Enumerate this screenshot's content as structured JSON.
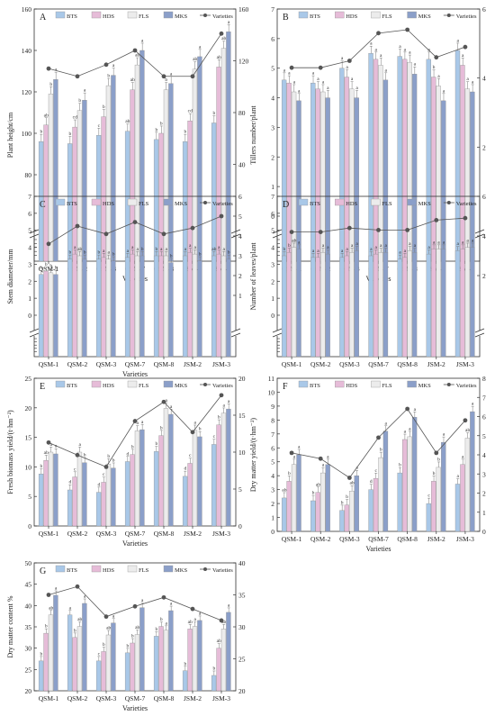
{
  "legend_items": [
    "BTS",
    "HDS",
    "FLS",
    "MKS",
    "Varieties"
  ],
  "series_colors": {
    "BTS": "#a9c8e8",
    "HDS": "#e6bcd8",
    "FLS": "#ececec",
    "MKS": "#8b9fc9",
    "Varieties": "#555555"
  },
  "chart_data": [
    {
      "panel": "A",
      "type": "bar",
      "categories": [
        "QSM-1",
        "QSM-2",
        "QSM-3",
        "QSM-7",
        "QSM-8",
        "JSM-2",
        "JSM-3"
      ],
      "xlabel": "Varieties",
      "ylabel": "Plant height/cm",
      "ylim": [
        60,
        160
      ],
      "yticks": [
        80,
        100,
        120,
        140,
        160
      ],
      "y2lim": [
        0,
        160
      ],
      "y2ticks": [
        40,
        80,
        120,
        160
      ],
      "series": [
        {
          "name": "BTS",
          "values": [
            96,
            95,
            99,
            101,
            97,
            96,
            105
          ],
          "labels": [
            "b",
            "b",
            "c",
            "ab",
            "b",
            "b",
            "b"
          ]
        },
        {
          "name": "HDS",
          "values": [
            104,
            103,
            108,
            121,
            100,
            106,
            132
          ],
          "labels": [
            "ab",
            "cd",
            "b",
            "ab",
            "b",
            "cd",
            "ab"
          ]
        },
        {
          "name": "FLS",
          "values": [
            119,
            111,
            123,
            133,
            121,
            131,
            141
          ],
          "labels": [
            "b",
            "b",
            "b",
            "ab",
            "b",
            "ab",
            "ab"
          ]
        },
        {
          "name": "MKS",
          "values": [
            126,
            116,
            128,
            140,
            124,
            137,
            149
          ],
          "labels": [
            "a",
            "a",
            "a",
            "a",
            "a",
            "a",
            "a"
          ]
        }
      ],
      "line": {
        "name": "Varieties",
        "values": [
          114,
          108,
          117,
          128,
          108,
          108,
          141
        ]
      }
    },
    {
      "panel": "B",
      "type": "bar",
      "categories": [
        "QSM-1",
        "QSM-2",
        "QSM-3",
        "QSM-7",
        "QSM-8",
        "JSM-2",
        "JSM-3"
      ],
      "xlabel": "Varieties",
      "ylabel": "Tillers number/plant",
      "ylim": [
        0,
        7
      ],
      "yticks": [
        0,
        1,
        2,
        3,
        4,
        5,
        6,
        7
      ],
      "y2lim": [
        0,
        6
      ],
      "y2ticks": [
        2,
        4,
        6
      ],
      "series": [
        {
          "name": "BTS",
          "values": [
            4.6,
            4.5,
            5.0,
            5.5,
            5.4,
            5.3,
            5.6
          ],
          "labels": [
            "a",
            "a",
            "a",
            "a",
            "a",
            "a",
            "a"
          ]
        },
        {
          "name": "HDS",
          "values": [
            4.5,
            4.3,
            4.7,
            5.3,
            5.3,
            4.7,
            5.1
          ],
          "labels": [
            "a",
            "a",
            "a",
            "a",
            "a",
            "b",
            "a"
          ]
        },
        {
          "name": "FLS",
          "values": [
            4.2,
            4.2,
            4.3,
            5.1,
            5.2,
            4.4,
            4.3
          ],
          "labels": [
            "a",
            "a",
            "a",
            "a",
            "a",
            "a",
            "a"
          ]
        },
        {
          "name": "MKS",
          "values": [
            3.9,
            4.0,
            4.0,
            4.6,
            4.8,
            3.9,
            4.2
          ],
          "labels": [
            "a",
            "a",
            "a",
            "a",
            "a",
            "a",
            "a"
          ]
        }
      ],
      "line": {
        "name": "Varieties",
        "values": [
          4.3,
          4.3,
          4.5,
          5.3,
          5.4,
          4.6,
          4.9
        ]
      }
    },
    {
      "panel": "C",
      "type": "bar",
      "categories": [
        "QSM-1",
        "QSM-2",
        "QSM-3",
        "QSM-7",
        "QSM-8",
        "JSM-2",
        "JSM-3"
      ],
      "xlabel": "Varieties",
      "ylabel": "Stem diameter/mm",
      "ylim": [
        0,
        7
      ],
      "yticks": [
        0,
        1,
        2,
        3,
        4,
        5,
        6,
        7
      ],
      "y2lim": [
        0,
        6
      ],
      "y2ticks": [
        1,
        2,
        3,
        4,
        5,
        6
      ],
      "series": [
        {
          "name": "BTS",
          "values": [
            2.4,
            3.3,
            3.3,
            3.4,
            3.5,
            3.5,
            3.5
          ],
          "labels": [
            "b",
            "b",
            "b",
            "a",
            "b",
            "a",
            "ab"
          ]
        },
        {
          "name": "HDS",
          "values": [
            2.6,
            3.6,
            3.4,
            3.6,
            3.5,
            3.7,
            3.6
          ],
          "labels": [
            "b",
            "a",
            "a",
            "a",
            "a",
            "a",
            "a"
          ]
        },
        {
          "name": "FLS",
          "values": [
            2.5,
            3.5,
            3.3,
            3.5,
            3.5,
            3.6,
            3.5
          ],
          "labels": [
            "b",
            "ab",
            "a",
            "a",
            "a",
            "a",
            "a"
          ]
        },
        {
          "name": "MKS",
          "values": [
            2.4,
            3.3,
            3.2,
            3.5,
            3.1,
            3.2,
            3.3
          ],
          "labels": [
            "b",
            "b",
            "b",
            "b",
            "b",
            "b",
            "b"
          ]
        }
      ],
      "line": {
        "name": "Varieties",
        "values": [
          3.6,
          4.5,
          4.1,
          4.7,
          4.1,
          4.4,
          5.0
        ]
      }
    },
    {
      "panel": "D",
      "type": "bar",
      "categories": [
        "QSM-1",
        "QSM-2",
        "QSM-3",
        "QSM-7",
        "QSM-8",
        "JSM-2",
        "JSM-3"
      ],
      "xlabel": "",
      "ylabel": "Number of leaves/plant",
      "ylim": [
        0,
        7
      ],
      "yticks": [
        0,
        1,
        2,
        3,
        4,
        5,
        6,
        7
      ],
      "y2lim": [
        0,
        6
      ],
      "y2ticks": [
        2,
        4,
        6
      ],
      "series": [
        {
          "name": "BTS",
          "values": [
            3.5,
            3.4,
            3.4,
            3.5,
            3.3,
            3.6,
            3.8
          ],
          "labels": [
            "b",
            "a",
            "a",
            "a",
            "a",
            "a",
            "a"
          ]
        },
        {
          "name": "HDS",
          "values": [
            3.7,
            3.4,
            3.5,
            3.6,
            3.4,
            3.9,
            3.9
          ],
          "labels": [
            "b",
            "a",
            "a",
            "a",
            "a",
            "a",
            "a"
          ]
        },
        {
          "name": "FLS",
          "values": [
            4.0,
            3.7,
            3.7,
            3.7,
            3.8,
            3.9,
            4.0
          ],
          "labels": [
            "ab",
            "a",
            "a",
            "a",
            "a",
            "a",
            "a"
          ]
        },
        {
          "name": "MKS",
          "values": [
            3.9,
            3.6,
            3.8,
            3.7,
            3.7,
            3.9,
            4.0
          ],
          "labels": [
            "a",
            "a",
            "a",
            "a",
            "a",
            "a",
            "a"
          ]
        }
      ],
      "line": {
        "name": "Varieties",
        "values": [
          4.2,
          4.2,
          4.4,
          4.3,
          4.3,
          4.8,
          4.9
        ]
      }
    },
    {
      "panel": "E",
      "type": "bar",
      "categories": [
        "QSM-1",
        "QSM-2",
        "QSM-3",
        "QSM-7",
        "QSM-8",
        "JSM-2",
        "JSM-3"
      ],
      "xlabel": "Varieties",
      "ylabel": "Fresh biomass yield/(t·hm⁻²)",
      "ylim": [
        0,
        25
      ],
      "yticks": [
        0,
        5,
        10,
        15,
        20,
        25
      ],
      "y2lim": [
        0,
        20
      ],
      "y2ticks": [
        0,
        5,
        10,
        15,
        20
      ],
      "series": [
        {
          "name": "BTS",
          "values": [
            8.8,
            6.1,
            5.7,
            10.9,
            12.6,
            8.4,
            13.8
          ],
          "labels": [
            "b",
            "d",
            "d",
            "d",
            "b",
            "d",
            "c"
          ]
        },
        {
          "name": "HDS",
          "values": [
            11.1,
            8.3,
            7.4,
            12.1,
            15.3,
            10.6,
            17.1
          ],
          "labels": [
            "ab",
            "c",
            "c",
            "b",
            "b",
            "c",
            "b"
          ]
        },
        {
          "name": "FLS",
          "values": [
            12.5,
            12.5,
            10.5,
            16.1,
            19.9,
            16.2,
            19.1
          ],
          "labels": [
            "a",
            "a",
            "b",
            "a",
            "a",
            "a",
            "a"
          ]
        },
        {
          "name": "MKS",
          "values": [
            12.2,
            10.7,
            9.8,
            16.3,
            18.9,
            15.1,
            19.8
          ],
          "labels": [
            "a",
            "b",
            "b",
            "a",
            "a",
            "b",
            "a"
          ]
        }
      ],
      "line": {
        "name": "Varieties",
        "values": [
          11.3,
          9.6,
          8.0,
          14.2,
          16.8,
          12.7,
          17.7
        ]
      }
    },
    {
      "panel": "F",
      "type": "bar",
      "categories": [
        "QSM-1",
        "QSM-2",
        "QSM-3",
        "QSM-7",
        "QSM-8",
        "JSM-2",
        "JSM-3"
      ],
      "xlabel": "Varieties",
      "ylabel": "Dry matter yield/(t·hm⁻²)",
      "ylim": [
        0,
        11
      ],
      "yticks": [
        0,
        1,
        2,
        3,
        4,
        5,
        6,
        7,
        8,
        9,
        10,
        11
      ],
      "y2lim": [
        0,
        8
      ],
      "y2ticks": [
        0,
        1,
        2,
        3,
        4,
        5,
        6,
        7,
        8
      ],
      "series": [
        {
          "name": "BTS",
          "values": [
            2.4,
            2.2,
            1.5,
            3.0,
            4.2,
            2.0,
            3.4
          ],
          "labels": [
            "ab",
            "b",
            "b",
            "d",
            "b",
            "c",
            "a"
          ]
        },
        {
          "name": "HDS",
          "values": [
            3.6,
            2.8,
            1.9,
            3.8,
            6.6,
            3.6,
            4.8
          ],
          "labels": [
            "b",
            "ab",
            "b",
            "c",
            "a",
            "b",
            "a"
          ]
        },
        {
          "name": "FLS",
          "values": [
            4.8,
            4.2,
            2.9,
            5.3,
            6.8,
            4.6,
            6.7
          ],
          "labels": [
            "a",
            "a",
            "ab",
            "b",
            "a",
            "b",
            "ab"
          ]
        },
        {
          "name": "MKS",
          "values": [
            5.5,
            4.8,
            4.0,
            7.2,
            8.2,
            6.4,
            8.6
          ],
          "labels": [
            "a",
            "a",
            "a",
            "a",
            "a",
            "a",
            "a"
          ]
        }
      ],
      "line": {
        "name": "Varieties",
        "values": [
          4.1,
          3.8,
          2.8,
          4.9,
          6.4,
          4.1,
          5.8
        ]
      }
    },
    {
      "panel": "G",
      "type": "bar",
      "categories": [
        "QSM-1",
        "QSM-2",
        "QSM-3",
        "QSM-7",
        "QSM-8",
        "JSM-2",
        "JSM-3"
      ],
      "xlabel": "Varieties",
      "ylabel": "Dry matter content %",
      "ylim": [
        20,
        50
      ],
      "yticks": [
        20,
        25,
        30,
        35,
        40,
        45,
        50
      ],
      "y2lim": [
        20,
        40
      ],
      "y2ticks": [
        20,
        25,
        30,
        35,
        40
      ],
      "series": [
        {
          "name": "BTS",
          "values": [
            27.0,
            37.8,
            27.0,
            28.9,
            32.8,
            24.7,
            23.6
          ],
          "labels": [
            "b",
            "a",
            "c",
            "b",
            "b",
            "b",
            "b"
          ]
        },
        {
          "name": "HDS",
          "values": [
            33.5,
            32.5,
            29.2,
            31.2,
            35.1,
            34.5,
            30.0
          ],
          "labels": [
            "b",
            "b",
            "b",
            "b",
            "b",
            "ab",
            "ab"
          ]
        },
        {
          "name": "FLS",
          "values": [
            37.8,
            35.1,
            33.1,
            33.2,
            34.2,
            35.1,
            34.5
          ],
          "labels": [
            "ab",
            "ab",
            "ab",
            "ab",
            "a",
            "a",
            "ab"
          ]
        },
        {
          "name": "MKS",
          "values": [
            42.4,
            40.5,
            35.9,
            39.5,
            38.8,
            36.5,
            38.4
          ],
          "labels": [
            "a",
            "a",
            "a",
            "a",
            "a",
            "a",
            "a"
          ]
        }
      ],
      "line": {
        "name": "Varieties",
        "values": [
          35.0,
          36.3,
          31.6,
          33.2,
          34.6,
          32.8,
          31.0
        ]
      }
    }
  ]
}
